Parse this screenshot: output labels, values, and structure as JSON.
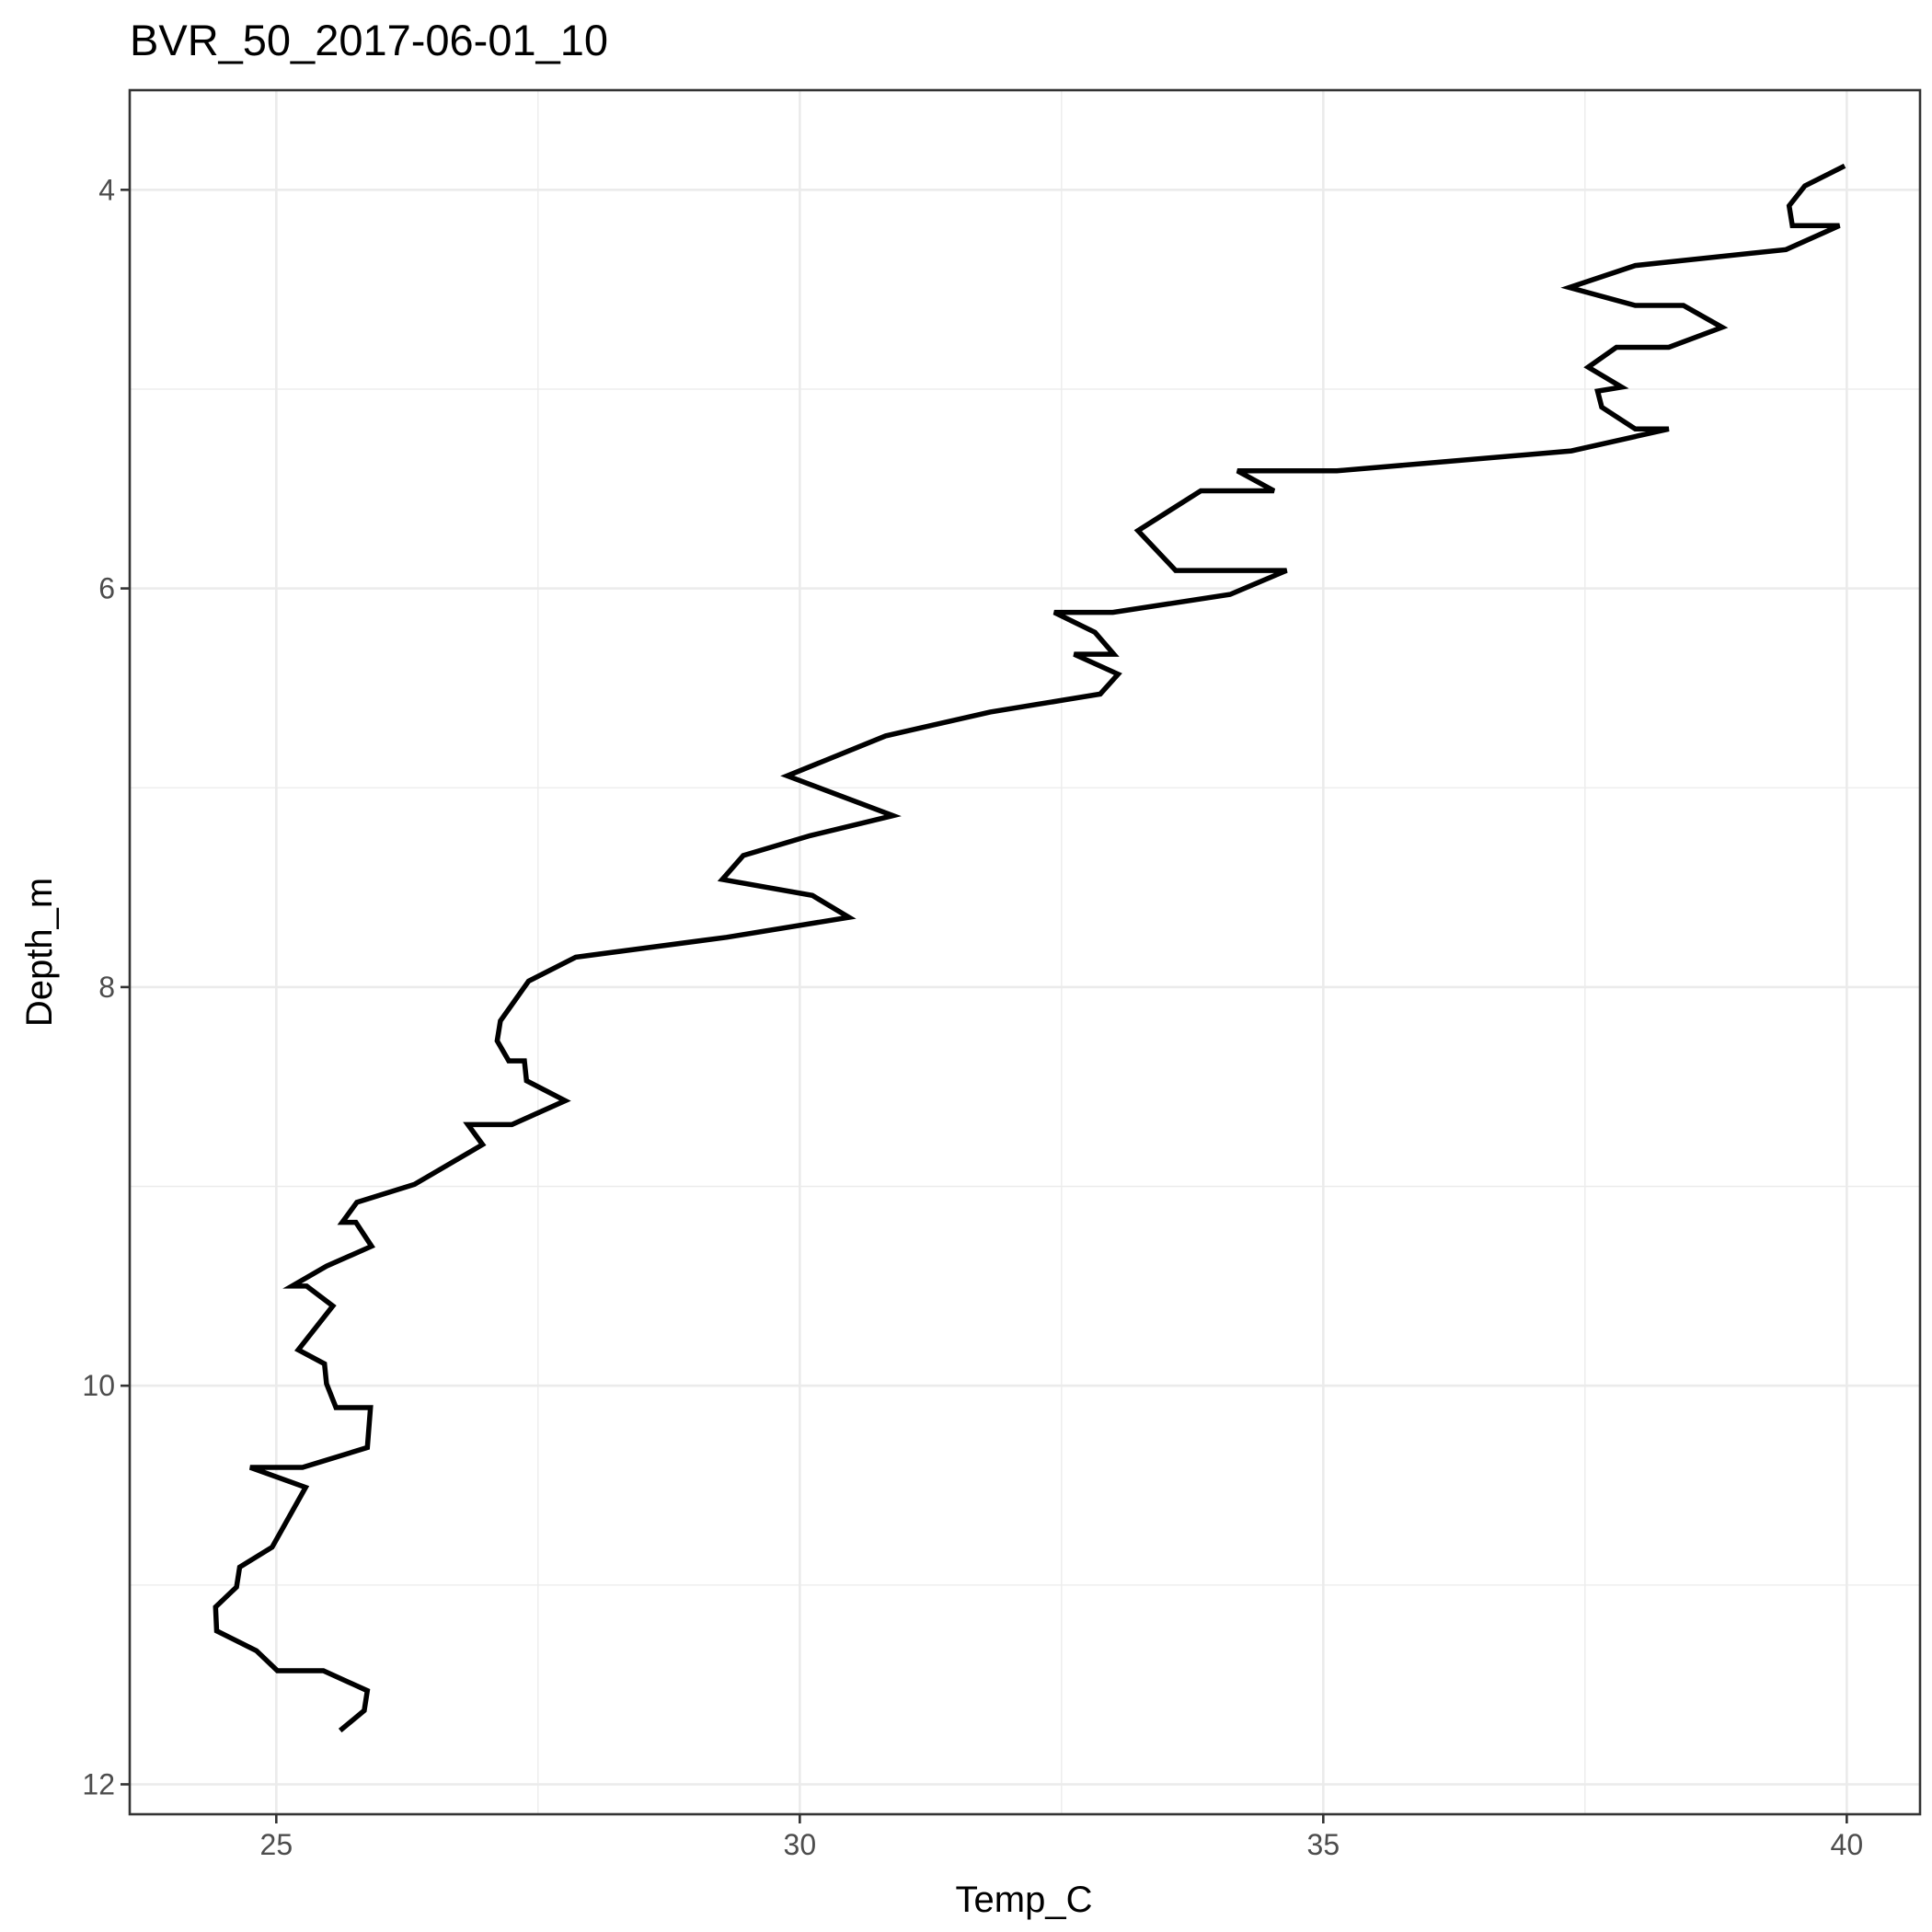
{
  "chart_data": {
    "type": "line",
    "title": "BVR_50_2017-06-01_10",
    "xlabel": "Temp_C",
    "ylabel": "Depth_m",
    "xlim": [
      23.6,
      40.7
    ],
    "ylim": [
      12.15,
      3.5
    ],
    "y_reversed": true,
    "grid": true,
    "x_ticks": [
      25,
      30,
      35,
      40
    ],
    "x_tick_labels": [
      "25",
      "30",
      "35",
      "40"
    ],
    "x_minor_ticks": [
      27.5,
      32.5,
      37.5
    ],
    "y_ticks": [
      4,
      6,
      8,
      10,
      12
    ],
    "y_tick_labels": [
      "4",
      "6",
      "8",
      "10",
      "12"
    ],
    "y_minor_ticks": [
      5,
      7,
      9,
      11
    ],
    "series": [
      {
        "color": "#000000",
        "points": [
          [
            39.98,
            3.88
          ],
          [
            39.6,
            3.98
          ],
          [
            39.45,
            4.08
          ],
          [
            39.48,
            4.18
          ],
          [
            39.93,
            4.18
          ],
          [
            39.42,
            4.3
          ],
          [
            37.98,
            4.38
          ],
          [
            37.35,
            4.49
          ],
          [
            37.98,
            4.58
          ],
          [
            38.44,
            4.58
          ],
          [
            38.81,
            4.69
          ],
          [
            38.3,
            4.79
          ],
          [
            37.8,
            4.79
          ],
          [
            37.53,
            4.89
          ],
          [
            37.85,
            4.99
          ],
          [
            37.62,
            5.01
          ],
          [
            37.66,
            5.09
          ],
          [
            37.98,
            5.2
          ],
          [
            38.3,
            5.2
          ],
          [
            37.37,
            5.31
          ],
          [
            35.13,
            5.41
          ],
          [
            34.18,
            5.41
          ],
          [
            34.53,
            5.51
          ],
          [
            33.83,
            5.51
          ],
          [
            33.23,
            5.71
          ],
          [
            33.59,
            5.91
          ],
          [
            34.65,
            5.91
          ],
          [
            34.11,
            6.03
          ],
          [
            32.99,
            6.12
          ],
          [
            32.43,
            6.12
          ],
          [
            32.82,
            6.22
          ],
          [
            33.0,
            6.33
          ],
          [
            32.62,
            6.33
          ],
          [
            33.04,
            6.43
          ],
          [
            32.87,
            6.53
          ],
          [
            31.82,
            6.62
          ],
          [
            30.82,
            6.74
          ],
          [
            29.88,
            6.94
          ],
          [
            30.89,
            7.14
          ],
          [
            30.1,
            7.24
          ],
          [
            29.46,
            7.34
          ],
          [
            29.26,
            7.46
          ],
          [
            30.12,
            7.54
          ],
          [
            30.47,
            7.65
          ],
          [
            29.3,
            7.75
          ],
          [
            27.86,
            7.85
          ],
          [
            27.41,
            7.97
          ],
          [
            27.14,
            8.17
          ],
          [
            27.11,
            8.27
          ],
          [
            27.22,
            8.37
          ],
          [
            27.37,
            8.37
          ],
          [
            27.39,
            8.47
          ],
          [
            27.76,
            8.57
          ],
          [
            27.25,
            8.69
          ],
          [
            26.83,
            8.69
          ],
          [
            26.97,
            8.79
          ],
          [
            26.32,
            8.99
          ],
          [
            25.77,
            9.08
          ],
          [
            25.63,
            9.18
          ],
          [
            25.76,
            9.18
          ],
          [
            25.91,
            9.3
          ],
          [
            25.48,
            9.4
          ],
          [
            25.15,
            9.5
          ],
          [
            25.29,
            9.5
          ],
          [
            25.54,
            9.6
          ],
          [
            25.21,
            9.82
          ],
          [
            25.46,
            9.89
          ],
          [
            25.48,
            9.99
          ],
          [
            25.57,
            10.11
          ],
          [
            25.9,
            10.11
          ],
          [
            25.87,
            10.31
          ],
          [
            25.25,
            10.41
          ],
          [
            24.75,
            10.41
          ],
          [
            25.28,
            10.51
          ],
          [
            24.96,
            10.81
          ],
          [
            24.65,
            10.91
          ],
          [
            24.62,
            11.01
          ],
          [
            24.42,
            11.11
          ],
          [
            24.43,
            11.23
          ],
          [
            24.81,
            11.33
          ],
          [
            25.01,
            11.43
          ],
          [
            25.45,
            11.43
          ],
          [
            25.87,
            11.53
          ],
          [
            25.84,
            11.63
          ],
          [
            25.61,
            11.73
          ]
        ]
      }
    ]
  }
}
